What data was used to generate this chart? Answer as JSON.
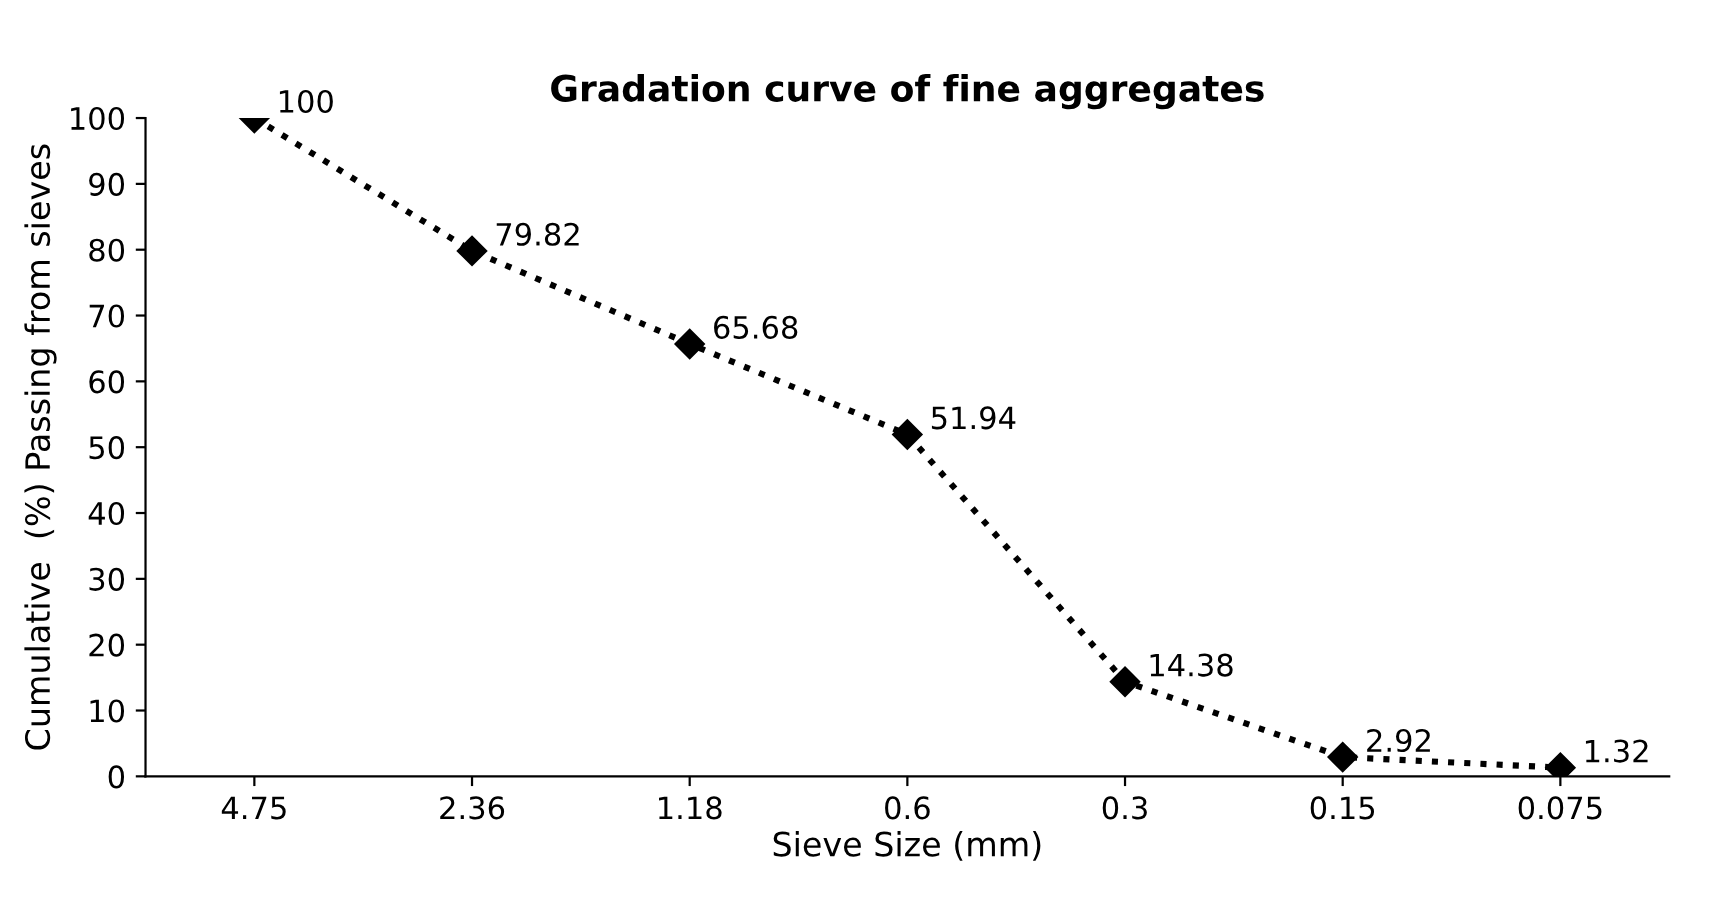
{
  "chart_data": {
    "type": "line",
    "title": "Gradation curve of fine aggregates",
    "xlabel": "Sieve Size (mm)",
    "ylabel": "Cumulative  (%) Passing from sieves",
    "categories": [
      "4.75",
      "2.36",
      "1.18",
      "0.6",
      "0.3",
      "0.15",
      "0.075"
    ],
    "series": [
      {
        "color": "#000000",
        "values": [
          100,
          79.82,
          65.68,
          51.94,
          14.38,
          2.92,
          1.32
        ]
      }
    ],
    "ylim": [
      0,
      100
    ],
    "yticks": [
      0,
      10,
      20,
      30,
      40,
      50,
      60,
      70,
      80,
      90,
      100
    ],
    "marker": "diamond",
    "line_style": "dotted",
    "data_labels": true,
    "grid": false,
    "legend": false
  }
}
